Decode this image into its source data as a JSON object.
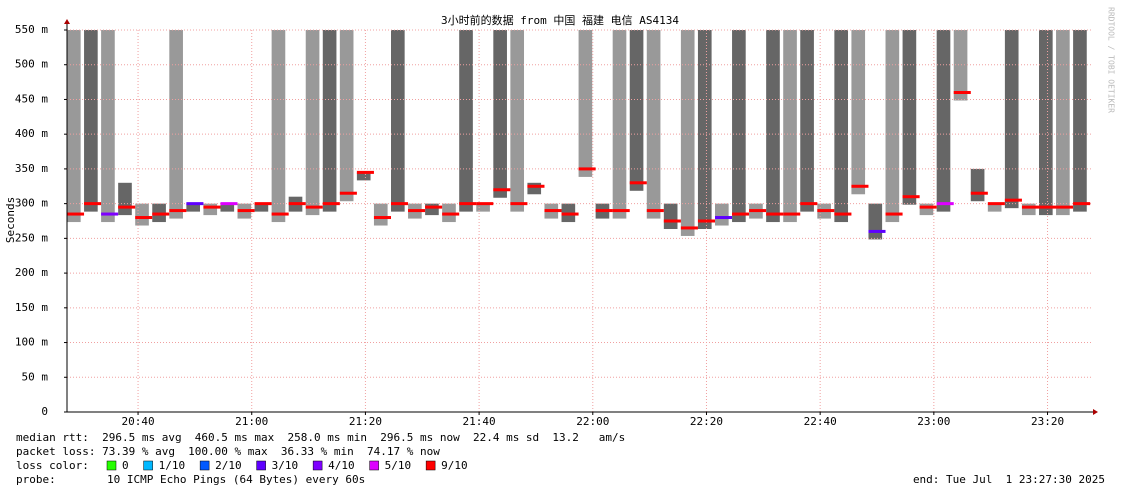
{
  "chart_data": {
    "type": "smokeping",
    "title": "3小时前的数据 from 中国 福建 电信 AS4134",
    "y_label": "Seconds",
    "side_note": "RRDTOOL / TOBI OETIKER",
    "ylim": [
      0,
      0.55
    ],
    "yticks": [
      0,
      {
        "value": 0.05,
        "label": "50 m"
      },
      {
        "value": 0.1,
        "label": "100 m"
      },
      {
        "value": 0.15,
        "label": "150 m"
      },
      {
        "value": 0.2,
        "label": "200 m"
      },
      {
        "value": 0.25,
        "label": "250 m"
      },
      {
        "value": 0.3,
        "label": "300 m"
      },
      {
        "value": 0.35,
        "label": "350 m"
      },
      {
        "value": 0.4,
        "label": "400 m"
      },
      {
        "value": 0.45,
        "label": "450 m"
      },
      {
        "value": 0.5,
        "label": "500 m"
      },
      {
        "value": 0.55,
        "label": "550 m"
      }
    ],
    "xlim": [
      1227.5,
      1408
    ],
    "xticks": [
      {
        "value": 1240,
        "label": "20:40"
      },
      {
        "value": 1260,
        "label": "21:00"
      },
      {
        "value": 1280,
        "label": "21:20"
      },
      {
        "value": 1300,
        "label": "21:40"
      },
      {
        "value": 1320,
        "label": "22:00"
      },
      {
        "value": 1340,
        "label": "22:20"
      },
      {
        "value": 1360,
        "label": "22:40"
      },
      {
        "value": 1380,
        "label": "23:00"
      },
      {
        "value": 1400,
        "label": "23:20"
      }
    ],
    "grid": true,
    "smoke_color": "#555555",
    "x": [
      1229,
      1232,
      1235,
      1238,
      1241,
      1244,
      1247,
      1250,
      1253,
      1256,
      1259,
      1262,
      1265,
      1268,
      1271,
      1274,
      1277,
      1280,
      1283,
      1286,
      1289,
      1292,
      1295,
      1298,
      1301,
      1304,
      1307,
      1310,
      1313,
      1316,
      1319,
      1322,
      1325,
      1328,
      1331,
      1334,
      1337,
      1340,
      1343,
      1346,
      1349,
      1352,
      1355,
      1358,
      1361,
      1364,
      1367,
      1370,
      1373,
      1376,
      1379,
      1382,
      1385,
      1388,
      1391,
      1394,
      1397,
      1400,
      1403,
      1406
    ],
    "median": [
      0.285,
      0.3,
      0.285,
      0.295,
      0.28,
      0.285,
      0.29,
      0.3,
      0.295,
      0.3,
      0.29,
      0.3,
      0.285,
      0.3,
      0.295,
      0.3,
      0.315,
      0.345,
      0.28,
      0.3,
      0.29,
      0.295,
      0.285,
      0.3,
      0.3,
      0.32,
      0.3,
      0.325,
      0.29,
      0.285,
      0.35,
      0.29,
      0.29,
      0.33,
      0.29,
      0.275,
      0.265,
      0.275,
      0.28,
      0.285,
      0.29,
      0.285,
      0.285,
      0.3,
      0.29,
      0.285,
      0.325,
      0.26,
      0.285,
      0.31,
      0.295,
      0.3,
      0.46,
      0.315,
      0.3,
      0.305,
      0.295,
      0.295,
      0.295,
      0.3
    ],
    "smoke_max": [
      0.55,
      0.55,
      0.55,
      0.33,
      0.3,
      0.3,
      0.55,
      0.3,
      0.3,
      0.3,
      0.3,
      0.3,
      0.55,
      0.31,
      0.55,
      0.55,
      0.55,
      0.345,
      0.3,
      0.55,
      0.3,
      0.3,
      0.3,
      0.55,
      0.3,
      0.55,
      0.55,
      0.33,
      0.3,
      0.3,
      0.55,
      0.3,
      0.55,
      0.55,
      0.55,
      0.3,
      0.55,
      0.55,
      0.3,
      0.55,
      0.3,
      0.55,
      0.55,
      0.55,
      0.3,
      0.55,
      0.55,
      0.3,
      0.55,
      0.55,
      0.3,
      0.55,
      0.55,
      0.35,
      0.3,
      0.55,
      0.3,
      0.55,
      0.55,
      0.55
    ],
    "median_loss": [
      6,
      6,
      4,
      6,
      6,
      6,
      6,
      3,
      6,
      5,
      6,
      6,
      6,
      6,
      6,
      6,
      6,
      6,
      6,
      6,
      6,
      6,
      6,
      6,
      6,
      6,
      6,
      6,
      6,
      6,
      6,
      6,
      6,
      6,
      6,
      6,
      6,
      6,
      3,
      6,
      6,
      6,
      6,
      6,
      6,
      6,
      6,
      3,
      6,
      6,
      6,
      5,
      6,
      6,
      6,
      6,
      6,
      6,
      6,
      6
    ],
    "loss_legend_title": "loss color:",
    "loss_colors": [
      {
        "label": "0",
        "color": "#26ff00"
      },
      {
        "label": "1/10",
        "color": "#00b8ff"
      },
      {
        "label": "2/10",
        "color": "#0059ff"
      },
      {
        "label": "3/10",
        "color": "#5e00ff"
      },
      {
        "label": "4/10",
        "color": "#7e00ff"
      },
      {
        "label": "5/10",
        "color": "#dd00ff"
      },
      {
        "label": "9/10",
        "color": "#ff0000"
      }
    ],
    "stats": [
      "median rtt:  296.5 ms avg  460.5 ms max  258.0 ms min  296.5 ms now  22.4 ms sd  13.2   am/s",
      "packet loss: 73.39 % avg  100.00 % max  36.33 % min  74.17 % now"
    ],
    "probe_label": "probe:",
    "probe": "10 ICMP Echo Pings (64 Bytes) every 60s",
    "end": "end: Tue Jul  1 23:27:30 2025"
  }
}
